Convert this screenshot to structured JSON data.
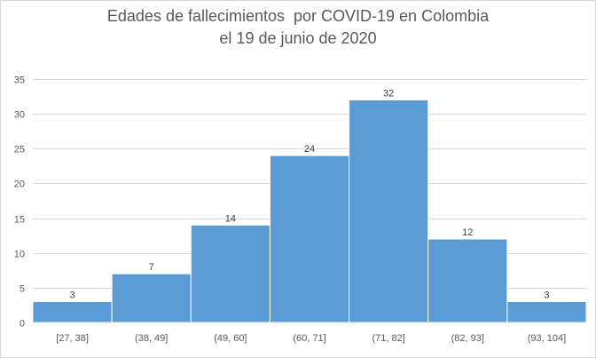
{
  "chart_data": {
    "type": "bar",
    "title_line1": "Edades de fallecimientos  por COVID-19 en Colombia",
    "title_line2": "el 19 de junio de 2020",
    "xlabel": "",
    "ylabel": "",
    "categories": [
      "[27, 38]",
      "(38, 49]",
      "(49, 60]",
      "(60, 71]",
      "(71, 82]",
      "(82, 93]",
      "(93, 104]"
    ],
    "values": [
      3,
      7,
      14,
      24,
      32,
      12,
      3
    ],
    "ylim": [
      0,
      35
    ],
    "yticks": [
      0,
      5,
      10,
      15,
      20,
      25,
      30,
      35
    ],
    "grid": true,
    "legend": "none",
    "data_labels": true,
    "colors": {
      "bar": "#5b9bd5",
      "bar_border": "#ffffff",
      "grid": "#d9d9d9",
      "text": "#595959"
    }
  }
}
